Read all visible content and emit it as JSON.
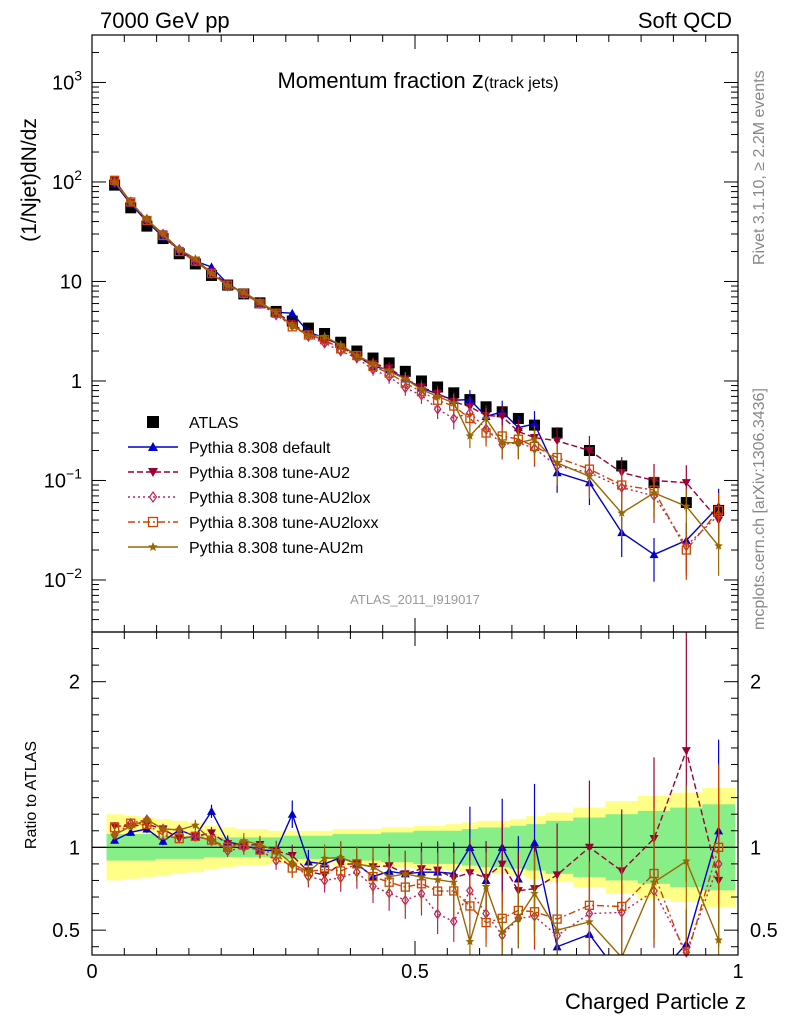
{
  "header": {
    "left": "7000 GeV pp",
    "right": "Soft QCD",
    "title_main": "Momentum fraction ",
    "title_var": "z",
    "title_sub": "(track jets)",
    "analysis_id": "ATLAS_2011_I919017",
    "side_rivet": "Rivet 3.1.10, ≥ 2.2M events",
    "side_mcplots": "mcplots.cern.ch [arXiv:1306.3436]"
  },
  "chart_data": {
    "type": "line",
    "xlabel": "Charged Particle z",
    "ylabel_main": "(1/Njet)dN/dz",
    "ylabel_ratio": "Ratio to ATLAS",
    "xlim": [
      0,
      1
    ],
    "ylim_main": [
      0.003,
      3000
    ],
    "ylim_ratio": [
      0.35,
      2.3
    ],
    "yscale_main": "log",
    "x_ticks": [
      {
        "v": 0,
        "label": "0"
      },
      {
        "v": 0.5,
        "label": "0.5"
      },
      {
        "v": 1,
        "label": "1"
      }
    ],
    "y_ticks_main": [
      {
        "v": 0.01,
        "base": "10",
        "exp": "−2"
      },
      {
        "v": 0.1,
        "base": "10",
        "exp": "−1"
      },
      {
        "v": 1,
        "base": "1",
        "exp": ""
      },
      {
        "v": 10,
        "base": "10",
        "exp": ""
      },
      {
        "v": 100,
        "base": "10",
        "exp": "2"
      },
      {
        "v": 1000,
        "base": "10",
        "exp": "3"
      }
    ],
    "y_ticks_ratio": [
      {
        "v": 0.5,
        "label": "0.5"
      },
      {
        "v": 1,
        "label": "1"
      },
      {
        "v": 2,
        "label": "2"
      }
    ],
    "x": [
      0.035,
      0.06,
      0.085,
      0.11,
      0.135,
      0.16,
      0.185,
      0.21,
      0.235,
      0.26,
      0.285,
      0.31,
      0.335,
      0.36,
      0.385,
      0.41,
      0.435,
      0.46,
      0.485,
      0.51,
      0.535,
      0.56,
      0.585,
      0.61,
      0.635,
      0.66,
      0.685,
      0.72,
      0.77,
      0.82,
      0.87,
      0.92,
      0.97
    ],
    "series": [
      {
        "name": "ATLAS",
        "color": "#000000",
        "marker": "square-filled",
        "dash": "none",
        "values": [
          93,
          55,
          36,
          27,
          19,
          15,
          11.5,
          9.2,
          7.5,
          6.1,
          5.0,
          4.0,
          3.4,
          3.0,
          2.45,
          2.0,
          1.7,
          1.52,
          1.25,
          1.0,
          0.87,
          0.76,
          0.65,
          0.55,
          0.49,
          0.42,
          0.36,
          0.3,
          0.2,
          0.14,
          0.095,
          0.06,
          0.05
        ]
      },
      {
        "name": "Pythia 8.308 default",
        "color": "#0000cc",
        "marker": "triangle-up",
        "dash": "none",
        "values": [
          97,
          60,
          40,
          28,
          21,
          16,
          14,
          9.5,
          7.6,
          6.0,
          4.9,
          4.8,
          3.1,
          2.7,
          2.3,
          1.8,
          1.4,
          1.3,
          1.05,
          0.85,
          0.74,
          0.64,
          0.65,
          0.44,
          0.49,
          0.34,
          0.37,
          0.12,
          0.095,
          0.03,
          0.018,
          0.025,
          0.055
        ]
      },
      {
        "name": "Pythia 8.308 tune-AU2",
        "color": "#990033",
        "marker": "triangle-down",
        "dash": "6,3",
        "values": [
          105,
          62,
          41,
          30,
          20,
          16,
          12.5,
          9.4,
          7.6,
          6.2,
          4.9,
          3.8,
          2.9,
          2.5,
          2.2,
          1.8,
          1.5,
          1.35,
          1.05,
          0.87,
          0.75,
          0.62,
          0.55,
          0.45,
          0.44,
          0.31,
          0.27,
          0.25,
          0.2,
          0.12,
          0.1,
          0.095,
          0.04
        ]
      },
      {
        "name": "Pythia 8.308 tune-AU2lox",
        "color": "#bb2266",
        "marker": "diamond-open",
        "dash": "2,3",
        "values": [
          100,
          63,
          42,
          30,
          21,
          16,
          12,
          9.0,
          7.5,
          6.0,
          4.6,
          3.6,
          2.8,
          2.4,
          2.0,
          1.7,
          1.3,
          1.1,
          0.85,
          0.72,
          0.52,
          0.42,
          0.48,
          0.33,
          0.23,
          0.24,
          0.21,
          0.14,
          0.12,
          0.085,
          0.07,
          0.022,
          0.045
        ]
      },
      {
        "name": "Pythia 8.308 tune-AU2loxx",
        "color": "#cc4400",
        "marker": "square-open",
        "dash": "7,3,2,3",
        "values": [
          104,
          63,
          41,
          29,
          20,
          16,
          12,
          9.2,
          7.6,
          6.0,
          4.8,
          3.5,
          2.9,
          2.6,
          2.1,
          1.8,
          1.4,
          1.2,
          0.95,
          0.78,
          0.64,
          0.56,
          0.42,
          0.3,
          0.28,
          0.26,
          0.22,
          0.17,
          0.13,
          0.09,
          0.08,
          0.02,
          0.05
        ]
      },
      {
        "name": "Pythia 8.308 tune-AU2m",
        "color": "#996600",
        "marker": "star",
        "dash": "none",
        "values": [
          100,
          62,
          42,
          30,
          21,
          17,
          12,
          9.1,
          7.8,
          6.2,
          4.9,
          3.6,
          2.9,
          2.8,
          2.3,
          1.8,
          1.5,
          1.25,
          1.05,
          0.82,
          0.7,
          0.6,
          0.28,
          0.42,
          0.24,
          0.24,
          0.26,
          0.15,
          0.11,
          0.047,
          0.075,
          0.055,
          0.022
        ]
      }
    ],
    "ratio_band_stat": [
      0.08,
      0.08,
      0.08,
      0.07,
      0.07,
      0.07,
      0.06,
      0.06,
      0.06,
      0.06,
      0.06,
      0.07,
      0.07,
      0.07,
      0.08,
      0.08,
      0.08,
      0.09,
      0.09,
      0.1,
      0.1,
      0.1,
      0.11,
      0.12,
      0.12,
      0.13,
      0.14,
      0.16,
      0.18,
      0.2,
      0.22,
      0.24,
      0.26
    ],
    "ratio_band_total": [
      0.2,
      0.19,
      0.18,
      0.17,
      0.16,
      0.15,
      0.13,
      0.12,
      0.11,
      0.11,
      0.1,
      0.1,
      0.1,
      0.1,
      0.11,
      0.11,
      0.11,
      0.12,
      0.12,
      0.13,
      0.13,
      0.14,
      0.15,
      0.16,
      0.16,
      0.17,
      0.19,
      0.21,
      0.24,
      0.28,
      0.31,
      0.33,
      0.36
    ]
  }
}
